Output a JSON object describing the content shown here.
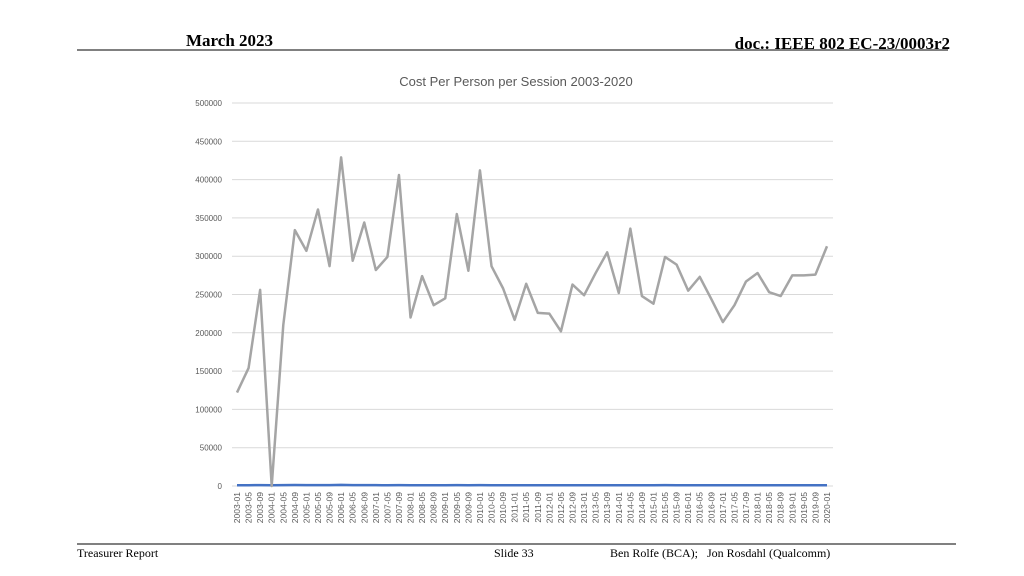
{
  "header": {
    "left": "March 2023",
    "right": "doc.: IEEE 802 EC-23/0003r2"
  },
  "chart_data": {
    "type": "line",
    "title": "Cost Per Person per Session 2003-2020",
    "categories": [
      "2003-01",
      "2003-05",
      "2003-09",
      "2004-01",
      "2004-05",
      "2004-09",
      "2005-01",
      "2005-05",
      "2005-09",
      "2006-01",
      "2006-05",
      "2006-09",
      "2007-01",
      "2007-05",
      "2007-09",
      "2008-01",
      "2008-05",
      "2008-09",
      "2009-01",
      "2009-05",
      "2009-09",
      "2010-01",
      "2010-05",
      "2010-09",
      "2011-01",
      "2011-05",
      "2011-09",
      "2012-01",
      "2012-05",
      "2012-09",
      "2013-01",
      "2013-05",
      "2013-09",
      "2014-01",
      "2014-05",
      "2014-09",
      "2015-01",
      "2015-05",
      "2015-09",
      "2016-01",
      "2016-05",
      "2016-09",
      "2017-01",
      "2017-05",
      "2017-09",
      "2018-01",
      "2018-05",
      "2018-09",
      "2019-01",
      "2019-05",
      "2019-09",
      "2020-01"
    ],
    "series": [
      {
        "color": "#4472c4",
        "values": [
          1000,
          1000,
          1200,
          1000,
          1200,
          1300,
          1200,
          1200,
          1100,
          1400,
          1200,
          1100,
          1100,
          1000,
          1100,
          1000,
          1000,
          1000,
          1000,
          1100,
          1000,
          1100,
          1000,
          1000,
          1000,
          1000,
          1000,
          1000,
          900,
          900,
          900,
          900,
          1000,
          900,
          900,
          900,
          1000,
          1100,
          1000,
          1000,
          1000,
          900,
          900,
          900,
          900,
          900,
          900,
          900,
          900,
          900,
          900,
          900
        ]
      },
      {
        "color": "#a5a5a5",
        "values": [
          122000,
          154000,
          256000,
          0,
          210000,
          334000,
          307000,
          361000,
          287000,
          429000,
          294000,
          344000,
          282000,
          299000,
          406000,
          220000,
          274000,
          236000,
          245000,
          355000,
          281000,
          412000,
          287000,
          258000,
          217000,
          264000,
          226000,
          225000,
          202000,
          263000,
          249000,
          278000,
          305000,
          252000,
          336000,
          248000,
          238000,
          299000,
          289000,
          255000,
          273000,
          244000,
          214000,
          236000,
          267000,
          278000,
          253000,
          248000,
          275000,
          275000,
          276000,
          313000
        ]
      }
    ],
    "ylim": [
      0,
      500000
    ],
    "yticks": [
      0,
      50000,
      100000,
      150000,
      200000,
      250000,
      300000,
      350000,
      400000,
      450000,
      500000
    ],
    "grid": true
  },
  "footer": {
    "left": "Treasurer Report",
    "center": "Slide 33",
    "right": "Ben Rolfe (BCA);   Jon Rosdahl (Qualcomm)"
  }
}
